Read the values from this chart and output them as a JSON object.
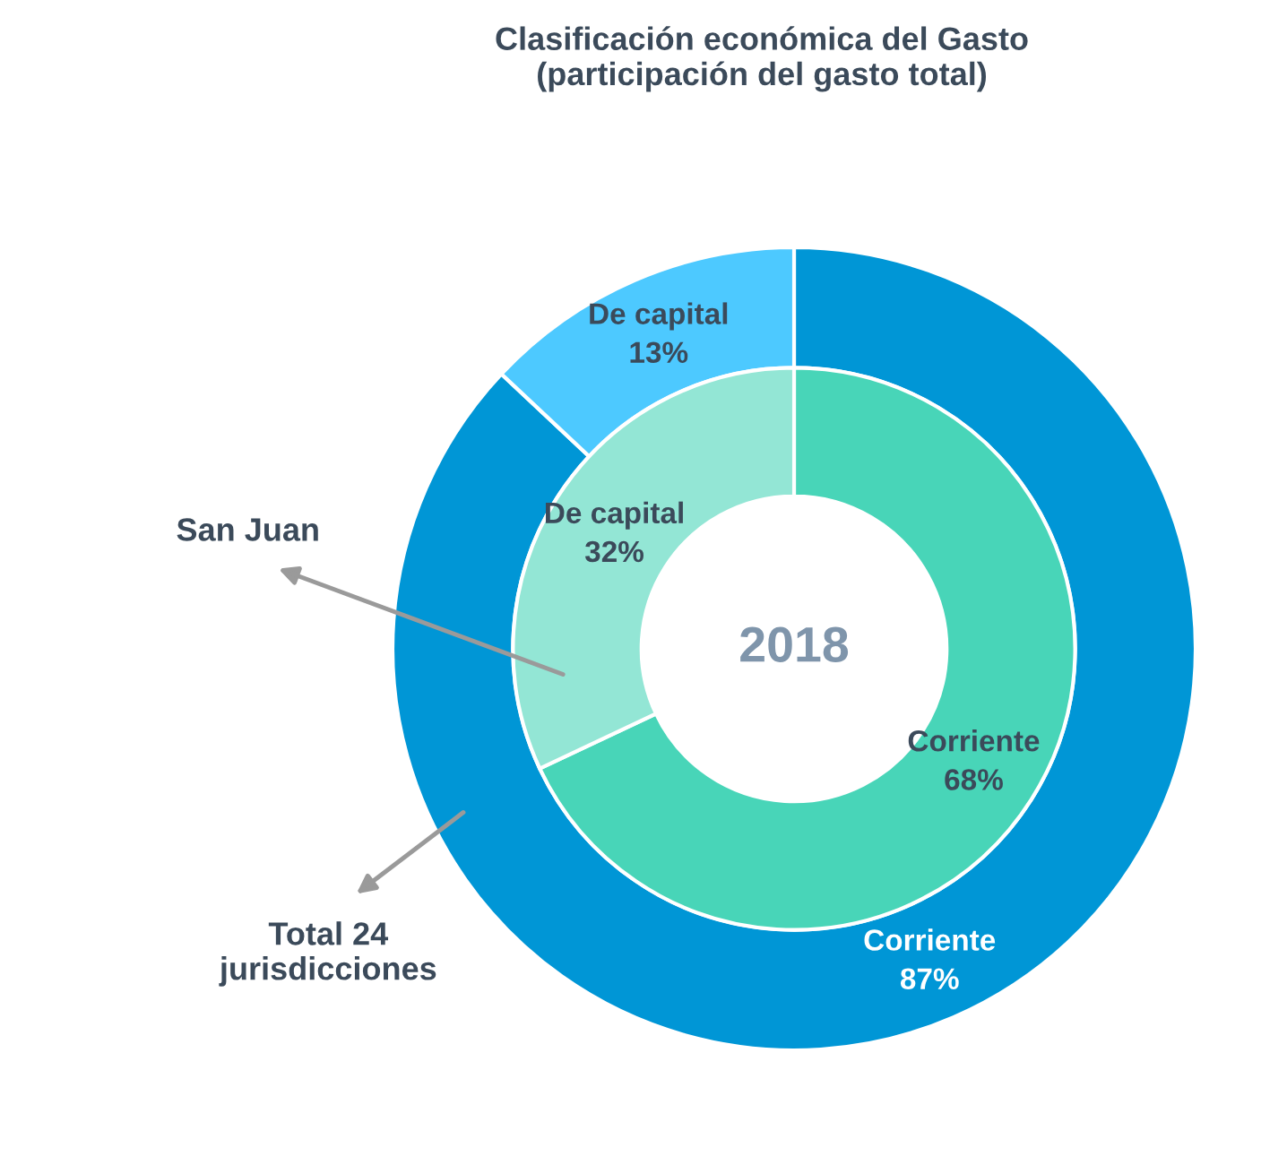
{
  "chart_data": {
    "type": "donut",
    "title": "Clasificación económica del Gasto\n(participación del gasto total)",
    "categories": [
      "Corriente",
      "De capital"
    ],
    "series": [
      {
        "name": "Total 24\njurisdicciones",
        "values": [
          87,
          13
        ],
        "colors": [
          "#0096d6",
          "#4dc9ff"
        ],
        "value_labels": [
          "87%",
          "13%"
        ]
      },
      {
        "name": "San Juan",
        "values": [
          68,
          32
        ],
        "colors": [
          "#48d5b8",
          "#93e6d5"
        ],
        "value_labels": [
          "68%",
          "32%"
        ]
      }
    ],
    "annotations": [
      "2018"
    ]
  }
}
